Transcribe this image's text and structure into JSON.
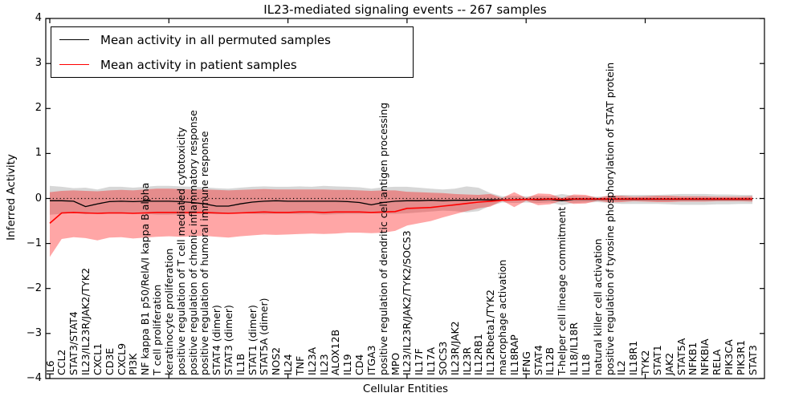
{
  "title": "IL23-mediated signaling events -- 267 samples",
  "axes": {
    "x_label": "Cellular Entities",
    "y_label": "Inferred Activity",
    "y_ticks": [
      4,
      3,
      2,
      1,
      0,
      -1,
      -2,
      -3,
      -4
    ],
    "y_tick_labels": [
      "4",
      "3",
      "2",
      "1",
      "0",
      "−1",
      "−2",
      "−3",
      "−4"
    ]
  },
  "legend": {
    "entries": [
      {
        "label": "Mean activity in all permuted samples",
        "color": "#000000"
      },
      {
        "label": "Mean activity in patient samples",
        "color": "#ff0000"
      }
    ]
  },
  "chart_data": {
    "type": "line",
    "title": "IL23-mediated signaling events -- 267 samples",
    "xlabel": "Cellular Entities",
    "ylabel": "Inferred Activity",
    "ylim": [
      -4,
      4
    ],
    "grid": false,
    "legend_position": "upper left",
    "zero_line": "dotted",
    "categories": [
      "IL6",
      "CCL2",
      "STAT3/STAT4",
      "IL23/IL23R/JAK2/TYK2",
      "CXCL1",
      "CD3E",
      "CXCL9",
      "PI3K",
      "NF kappa B1 p50/RelA/I kappa B alpha",
      "T cell proliferation",
      "keratinocyte proliferation",
      "positive regulation of T cell mediated cytotoxicity",
      "positive regulation of chronic inflammatory response",
      "positive regulation of humoral immune response",
      "STAT4 (dimer)",
      "STAT3 (dimer)",
      "IL1B",
      "STAT1 (dimer)",
      "STAT5A (dimer)",
      "NOS2",
      "IL24",
      "TNF",
      "IL23A",
      "IL23",
      "ALOX12B",
      "IL19",
      "CD4",
      "ITGA3",
      "positive regulation of dendritic cell antigen processing",
      "MPO",
      "IL23/IL23R/JAK2/TYK2/SOCS3",
      "IL17F",
      "IL17A",
      "SOCS3",
      "IL23R/JAK2",
      "IL23R",
      "IL12RB1",
      "IL12Rbeta1/TYK2",
      "macrophage activation",
      "IL18RAP",
      "IFNG",
      "STAT4",
      "IL12B",
      "T-helper cell lineage commitment",
      "IL18/IL18R",
      "IL18",
      "natural killer cell activation",
      "positive regulation of tyrosine phosphorylation of STAT protein",
      "IL2",
      "IL18R1",
      "TYK2",
      "STAT1",
      "JAK2",
      "STAT5A",
      "NFKB1",
      "NFKBIA",
      "RELA",
      "PIK3CA",
      "PIK3R1",
      "STAT3"
    ],
    "series": [
      {
        "name": "Mean activity in all permuted samples",
        "color": "#000000",
        "values": [
          -0.05,
          -0.05,
          -0.06,
          -0.18,
          -0.12,
          -0.07,
          -0.06,
          -0.07,
          -0.06,
          -0.06,
          -0.06,
          -0.07,
          -0.09,
          -0.12,
          -0.17,
          -0.17,
          -0.12,
          -0.08,
          -0.06,
          -0.05,
          -0.06,
          -0.06,
          -0.06,
          -0.06,
          -0.06,
          -0.07,
          -0.09,
          -0.14,
          -0.09,
          -0.06,
          -0.05,
          -0.05,
          -0.04,
          -0.05,
          -0.04,
          -0.04,
          -0.03,
          -0.03,
          -0.03,
          -0.03,
          -0.02,
          -0.03,
          -0.02,
          -0.05,
          -0.02,
          -0.02,
          -0.02,
          -0.02,
          -0.02,
          -0.02,
          -0.02,
          -0.02,
          -0.02,
          -0.02,
          -0.02,
          -0.02,
          -0.02,
          -0.02,
          -0.02,
          -0.02
        ]
      },
      {
        "name": "Mean activity in patient samples",
        "color": "#ff0000",
        "values": [
          -0.55,
          -0.32,
          -0.31,
          -0.32,
          -0.33,
          -0.32,
          -0.32,
          -0.33,
          -0.32,
          -0.31,
          -0.31,
          -0.31,
          -0.31,
          -0.31,
          -0.32,
          -0.33,
          -0.32,
          -0.31,
          -0.3,
          -0.31,
          -0.31,
          -0.3,
          -0.3,
          -0.31,
          -0.3,
          -0.3,
          -0.3,
          -0.31,
          -0.3,
          -0.29,
          -0.22,
          -0.21,
          -0.2,
          -0.17,
          -0.14,
          -0.11,
          -0.08,
          -0.06,
          -0.04,
          -0.03,
          -0.02,
          -0.02,
          -0.01,
          -0.02,
          -0.01,
          -0.01,
          -0.01,
          -0.01,
          -0.01,
          -0.01,
          -0.01,
          -0.01,
          -0.01,
          -0.01,
          -0.01,
          -0.01,
          -0.01,
          -0.01,
          -0.01,
          -0.01
        ]
      }
    ],
    "bands": [
      {
        "name": "permuted samples std band",
        "color": "rgba(0,0,0,0.155)",
        "upper": [
          0.28,
          0.26,
          0.23,
          0.24,
          0.2,
          0.26,
          0.26,
          0.24,
          0.26,
          0.28,
          0.28,
          0.27,
          0.26,
          0.25,
          0.23,
          0.22,
          0.24,
          0.26,
          0.27,
          0.26,
          0.26,
          0.27,
          0.26,
          0.28,
          0.27,
          0.26,
          0.25,
          0.22,
          0.25,
          0.26,
          0.26,
          0.24,
          0.22,
          0.2,
          0.22,
          0.27,
          0.24,
          0.12,
          0.05,
          0.06,
          0.05,
          0.06,
          0.05,
          0.1,
          0.06,
          0.05,
          0.04,
          0.06,
          0.08,
          0.08,
          0.08,
          0.08,
          0.09,
          0.1,
          0.1,
          0.1,
          0.09,
          0.09,
          0.08,
          0.08
        ],
        "lower": [
          -0.36,
          -0.34,
          -0.32,
          -0.35,
          -0.32,
          -0.34,
          -0.34,
          -0.33,
          -0.34,
          -0.36,
          -0.36,
          -0.35,
          -0.34,
          -0.34,
          -0.35,
          -0.34,
          -0.33,
          -0.34,
          -0.35,
          -0.34,
          -0.34,
          -0.35,
          -0.34,
          -0.36,
          -0.35,
          -0.34,
          -0.34,
          -0.33,
          -0.34,
          -0.34,
          -0.33,
          -0.31,
          -0.29,
          -0.27,
          -0.28,
          -0.31,
          -0.28,
          -0.16,
          -0.09,
          -0.1,
          -0.09,
          -0.1,
          -0.09,
          -0.15,
          -0.1,
          -0.09,
          -0.08,
          -0.1,
          -0.12,
          -0.12,
          -0.12,
          -0.12,
          -0.13,
          -0.14,
          -0.14,
          -0.14,
          -0.13,
          -0.13,
          -0.12,
          -0.12
        ]
      },
      {
        "name": "patient samples std band",
        "color": "rgba(255,0,0,0.35)",
        "upper": [
          0.14,
          0.17,
          0.18,
          0.17,
          0.16,
          0.18,
          0.19,
          0.18,
          0.2,
          0.22,
          0.22,
          0.21,
          0.2,
          0.2,
          0.19,
          0.18,
          0.19,
          0.2,
          0.21,
          0.2,
          0.2,
          0.2,
          0.2,
          0.2,
          0.19,
          0.19,
          0.18,
          0.17,
          0.18,
          0.18,
          0.15,
          0.14,
          0.13,
          0.12,
          0.1,
          0.09,
          0.08,
          0.1,
          0.01,
          0.14,
          0.01,
          0.11,
          0.1,
          0.01,
          0.09,
          0.08,
          0.01,
          0.07,
          0.06,
          0.04,
          0.05,
          0.06,
          0.06,
          0.05,
          0.05,
          0.05,
          0.04,
          0.04,
          0.04,
          0.05
        ],
        "lower": [
          -1.3,
          -0.9,
          -0.86,
          -0.88,
          -0.93,
          -0.87,
          -0.86,
          -0.89,
          -0.87,
          -0.85,
          -0.84,
          -0.85,
          -0.84,
          -0.83,
          -0.85,
          -0.87,
          -0.84,
          -0.82,
          -0.8,
          -0.81,
          -0.8,
          -0.79,
          -0.78,
          -0.79,
          -0.78,
          -0.76,
          -0.76,
          -0.77,
          -0.76,
          -0.72,
          -0.6,
          -0.55,
          -0.5,
          -0.42,
          -0.35,
          -0.28,
          -0.22,
          -0.18,
          -0.05,
          -0.19,
          -0.05,
          -0.15,
          -0.13,
          -0.05,
          -0.12,
          -0.11,
          -0.05,
          -0.09,
          -0.08,
          -0.06,
          -0.07,
          -0.08,
          -0.08,
          -0.07,
          -0.07,
          -0.07,
          -0.06,
          -0.06,
          -0.06,
          -0.07
        ]
      }
    ]
  }
}
